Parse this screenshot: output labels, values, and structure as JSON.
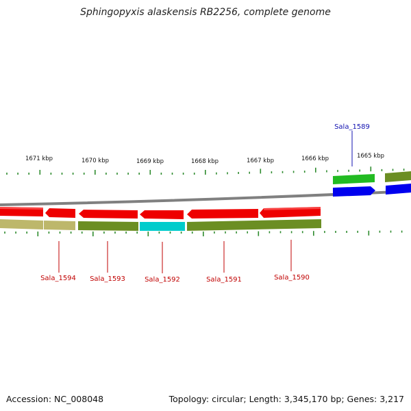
{
  "title": "Sphingopyxis alaskensis RB2256, complete genome",
  "footer": {
    "accession": "Accession: NC_008048",
    "summary": "Topology: circular; Length: 3,345,170 bp; Genes: 3,217"
  },
  "kbp_ticks": [
    "1671 kbp",
    "1670 kbp",
    "1669 kbp",
    "1668 kbp",
    "1667 kbp",
    "1666 kbp",
    "1665 kbp"
  ],
  "gene_labels": [
    "Sala_1594",
    "Sala_1593",
    "Sala_1592",
    "Sala_1591",
    "Sala_1590",
    "Sala_1589"
  ],
  "colors": {
    "backbone": "#808080",
    "cds_red": "#ee0000",
    "cds_green_bright": "#22bb22",
    "cds_blue": "#0000ee",
    "track_olive": "#6b8e23",
    "track_khaki": "#bdb76b",
    "track_cyan": "#00cccc",
    "tick_green": "#2e8b2e",
    "label_red": "#c00000",
    "label_blue": "#1010b0"
  }
}
